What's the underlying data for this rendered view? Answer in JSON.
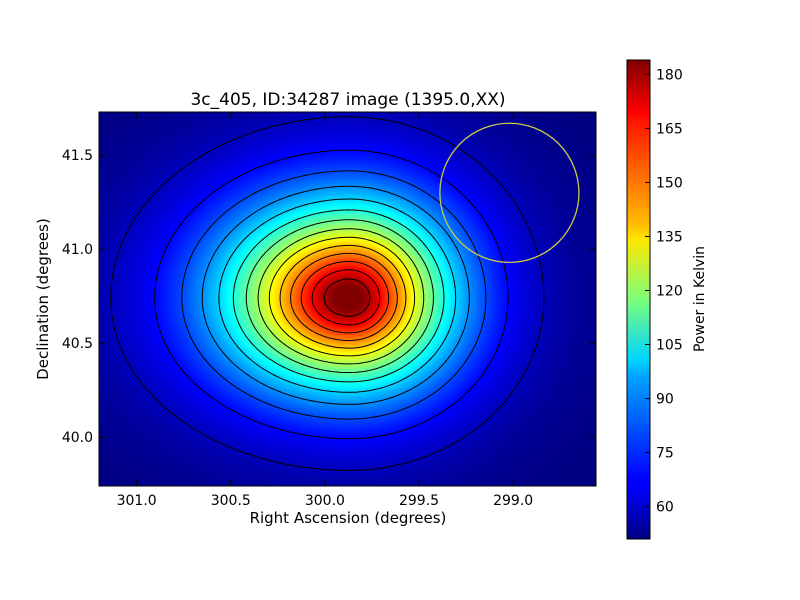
{
  "chart_data": {
    "type": "heatmap",
    "title": "3c_405, ID:34287 image (1395.0,XX)",
    "xlabel": "Right Ascension (degrees)",
    "ylabel": "Declination (degrees)",
    "xlim": [
      301.2,
      298.56
    ],
    "ylim": [
      39.74,
      41.73
    ],
    "x_axis_reversed": true,
    "x_ticks": [
      301.0,
      300.5,
      300.0,
      299.5,
      299.0
    ],
    "x_tick_labels": [
      "301.0",
      "300.5",
      "300.0",
      "299.5",
      "299.0"
    ],
    "y_ticks": [
      40.0,
      40.5,
      41.0,
      41.5
    ],
    "y_tick_labels": [
      "40.0",
      "40.5",
      "41.0",
      "41.5"
    ],
    "colormap": "jet",
    "colorbar": {
      "label": "Power in Kelvin",
      "range": [
        51,
        184
      ],
      "ticks": [
        60,
        75,
        90,
        105,
        120,
        135,
        150,
        165,
        180
      ],
      "tick_labels": [
        "60",
        "75",
        "90",
        "105",
        "120",
        "135",
        "150",
        "165",
        "180"
      ]
    },
    "source_peak": {
      "ra": 299.87,
      "dec": 40.74,
      "value": 183
    },
    "background_level": 51,
    "contour_count": 14,
    "contour_color": "#000000",
    "beam_circle": {
      "ra": 299.02,
      "dec": 41.3,
      "radius_deg": 0.37,
      "color": "#c8c84a"
    },
    "grid": false
  }
}
